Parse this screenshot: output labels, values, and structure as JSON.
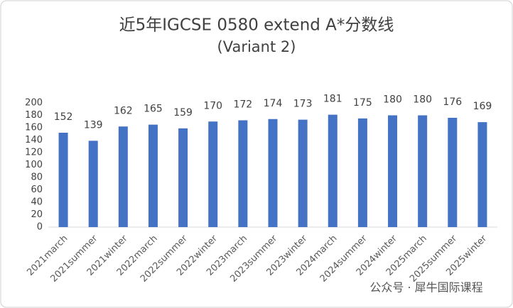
{
  "chart_data": {
    "type": "bar",
    "title": "近5年IGCSE 0580 extend A*分数线",
    "subtitle": "(Variant 2)",
    "categories": [
      "2021march",
      "2021summer",
      "2021winter",
      "2022march",
      "2022summer",
      "2022winter",
      "2023march",
      "2023summer",
      "2023winter",
      "2024march",
      "2024summer",
      "2024winter",
      "2025march",
      "2025summer",
      "2025winter"
    ],
    "values": [
      152,
      139,
      162,
      165,
      159,
      170,
      172,
      174,
      173,
      181,
      175,
      180,
      180,
      176,
      169
    ],
    "color": "#4472c4",
    "ylim": [
      0,
      200
    ],
    "yticks": [
      0,
      20,
      40,
      60,
      80,
      100,
      120,
      140,
      160,
      180,
      200
    ],
    "grid": false,
    "watermark": "公众号 · 犀牛国际课程"
  }
}
